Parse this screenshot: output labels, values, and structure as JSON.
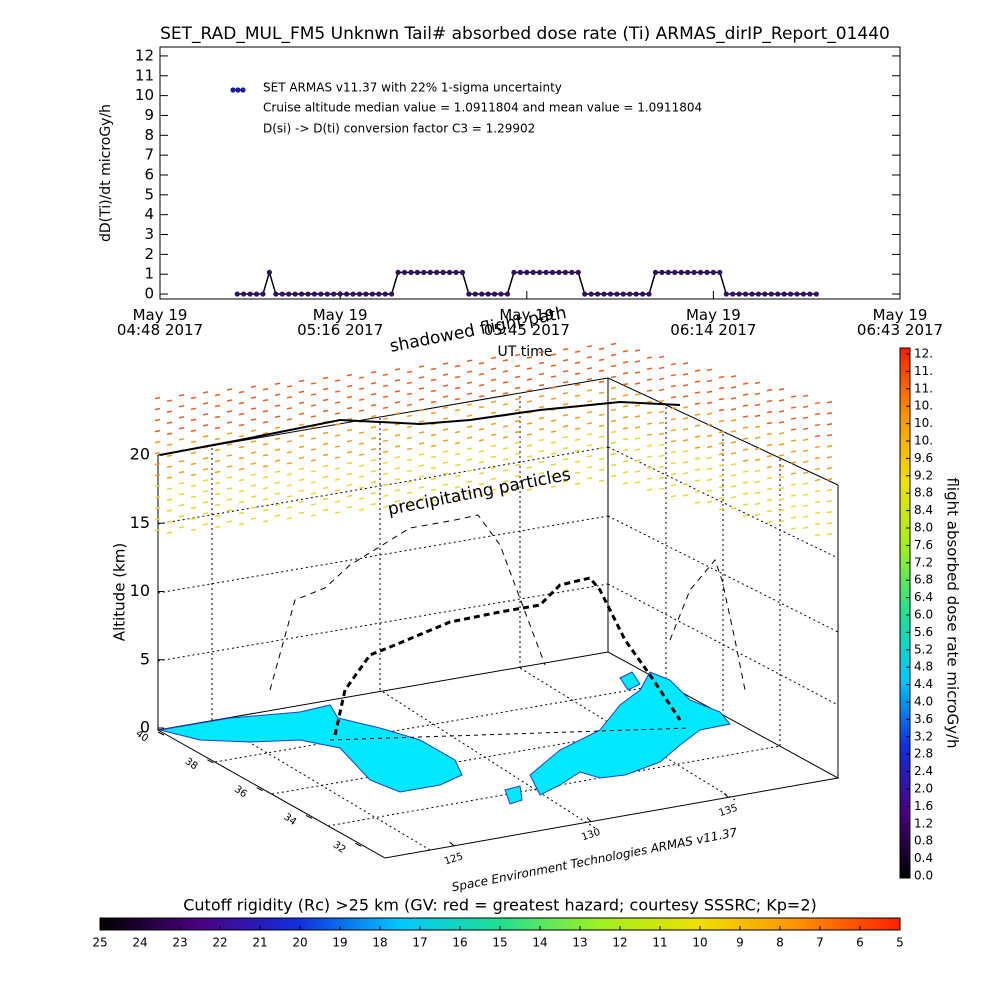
{
  "title": "SET_RAD_MUL_FM5 Unknwn Tail#  absorbed dose rate (Ti) ARMAS_dirIP_Report_01440",
  "chart_data": [
    {
      "type": "scatter",
      "ylabel": "dD(Ti)/dt microGy/h",
      "xlabel": "UT time",
      "legend": [
        "SET ARMAS v11.37 with 22% 1-sigma uncertainty",
        "Cruise altitude median value = 1.0911804 and mean value = 1.0911804",
        "D(si) -> D(ti) conversion factor C3 = 1.29902"
      ],
      "color": "#301060",
      "legend_color": "#1a1aa8",
      "xlim": [
        "04:48",
        "06:43"
      ],
      "xticks": [
        {
          "value": "04:48",
          "label": "May 19\n04:48 2017"
        },
        {
          "value": "05:16",
          "label": "May 19\n05:16 2017"
        },
        {
          "value": "05:45",
          "label": "May 19\n05:45 2017"
        },
        {
          "value": "06:14",
          "label": "May 19\n06:14 2017"
        },
        {
          "value": "06:43",
          "label": "May 19\n06:43 2017"
        }
      ],
      "ylim": [
        -0.25,
        12.45
      ],
      "yticks": [
        0,
        1,
        2,
        3,
        4,
        5,
        6,
        7,
        8,
        9,
        10,
        11,
        12
      ],
      "x": [
        "05:00",
        "05:01",
        "05:02",
        "05:03",
        "05:04",
        "05:05",
        "05:06",
        "05:07",
        "05:08",
        "05:09",
        "05:10",
        "05:11",
        "05:12",
        "05:13",
        "05:14",
        "05:15",
        "05:16",
        "05:17",
        "05:18",
        "05:19",
        "05:20",
        "05:21",
        "05:22",
        "05:23",
        "05:24",
        "05:25",
        "05:26",
        "05:27",
        "05:28",
        "05:29",
        "05:30",
        "05:31",
        "05:32",
        "05:33",
        "05:34",
        "05:35",
        "05:36",
        "05:37",
        "05:38",
        "05:39",
        "05:40",
        "05:41",
        "05:42",
        "05:43",
        "05:44",
        "05:45",
        "05:46",
        "05:47",
        "05:48",
        "05:49",
        "05:50",
        "05:51",
        "05:52",
        "05:53",
        "05:54",
        "05:55",
        "05:56",
        "05:57",
        "05:58",
        "05:59",
        "06:00",
        "06:01",
        "06:02",
        "06:03",
        "06:04",
        "06:05",
        "06:06",
        "06:07",
        "06:08",
        "06:09",
        "06:10",
        "06:11",
        "06:12",
        "06:13",
        "06:14",
        "06:15",
        "06:16",
        "06:17",
        "06:18",
        "06:19",
        "06:20",
        "06:21",
        "06:22",
        "06:23",
        "06:24",
        "06:25",
        "06:26",
        "06:27",
        "06:28",
        "06:29",
        "06:30"
      ],
      "values": [
        0,
        0,
        0,
        0,
        0,
        1.09,
        0,
        0,
        0,
        0,
        0,
        0,
        0,
        0,
        0,
        0,
        0,
        0,
        0,
        0,
        0,
        0,
        0,
        0,
        0,
        1.09,
        1.09,
        1.09,
        1.09,
        1.09,
        1.09,
        1.09,
        1.09,
        1.09,
        1.09,
        1.09,
        0,
        0,
        0,
        0,
        0,
        0,
        0,
        1.09,
        1.09,
        1.09,
        1.09,
        1.09,
        1.09,
        1.09,
        1.09,
        1.09,
        1.09,
        1.09,
        0,
        0,
        0,
        0,
        0,
        0,
        0,
        0,
        0,
        0,
        0,
        1.09,
        1.09,
        1.09,
        1.09,
        1.09,
        1.09,
        1.09,
        1.09,
        1.09,
        1.09,
        1.09,
        0,
        0,
        0,
        0,
        0,
        0,
        0,
        0,
        0,
        0,
        0,
        0,
        0,
        0,
        0
      ]
    },
    {
      "type": "colorbar",
      "orientation": "vertical",
      "label": "flight absorbed dose rate microGy/h",
      "ylim": [
        0,
        12
      ],
      "yticks": [
        {
          "value": 0,
          "label": "0.0"
        },
        {
          "value": 0.4,
          "label": "0.4"
        },
        {
          "value": 0.8,
          "label": "0.8"
        },
        {
          "value": 1.2,
          "label": "1.2"
        },
        {
          "value": 1.6,
          "label": "1.6"
        },
        {
          "value": 2,
          "label": "2.0"
        },
        {
          "value": 2.4,
          "label": "2.4"
        },
        {
          "value": 2.8,
          "label": "2.8"
        },
        {
          "value": 3.2,
          "label": "3.2"
        },
        {
          "value": 3.6,
          "label": "3.6"
        },
        {
          "value": 4,
          "label": "4.0"
        },
        {
          "value": 4.4,
          "label": "4.4"
        },
        {
          "value": 4.8,
          "label": "4.8"
        },
        {
          "value": 5.2,
          "label": "5.2"
        },
        {
          "value": 5.6,
          "label": "5.6"
        },
        {
          "value": 6,
          "label": "6.0"
        },
        {
          "value": 6.4,
          "label": "6.4"
        },
        {
          "value": 6.8,
          "label": "6.8"
        },
        {
          "value": 7.2,
          "label": "7.2"
        },
        {
          "value": 7.6,
          "label": "7.6"
        },
        {
          "value": 8,
          "label": "8.0"
        },
        {
          "value": 8.4,
          "label": "8.4"
        },
        {
          "value": 8.8,
          "label": "8.8"
        },
        {
          "value": 9.2,
          "label": "9.2"
        },
        {
          "value": 9.6,
          "label": "9.6"
        },
        {
          "value": 10,
          "label": "10."
        },
        {
          "value": 10.4,
          "label": "10."
        },
        {
          "value": 10.8,
          "label": "10."
        },
        {
          "value": 11.2,
          "label": "11."
        },
        {
          "value": 11.6,
          "label": "11."
        },
        {
          "value": 12,
          "label": "12."
        }
      ],
      "colors": [
        "#000000",
        "#4a0080",
        "#1030e0",
        "#00c8ff",
        "#20e090",
        "#a0f020",
        "#f0e000",
        "#ff9000",
        "#ff2000"
      ]
    },
    {
      "type": "colorbar",
      "orientation": "horizontal",
      "label": "Cutoff rigidity (Rc) >25 km (GV: red = greatest hazard; courtesy SSSRC; Kp=2)",
      "xlim": [
        25,
        5
      ],
      "xticks": [
        25,
        24,
        23,
        22,
        21,
        20,
        19,
        18,
        17,
        16,
        15,
        14,
        13,
        12,
        11,
        10,
        9,
        8,
        7,
        6,
        5
      ],
      "colors": [
        "#000000",
        "#4a0080",
        "#1030e0",
        "#00c8ff",
        "#20e090",
        "#a0f020",
        "#f0e000",
        "#ff9000",
        "#ff2000"
      ]
    }
  ],
  "scene": {
    "zlabel": "Altitude (km)",
    "zticks": [
      0,
      5,
      10,
      15,
      20
    ],
    "lat_ticks": [
      40,
      38,
      36,
      34,
      32
    ],
    "lon_ticks": [
      125,
      130,
      135
    ],
    "annotations": [
      "shadowed flight path",
      "precipitating particles"
    ],
    "credit": "Space Environment Technologies ARMAS v11.37"
  }
}
